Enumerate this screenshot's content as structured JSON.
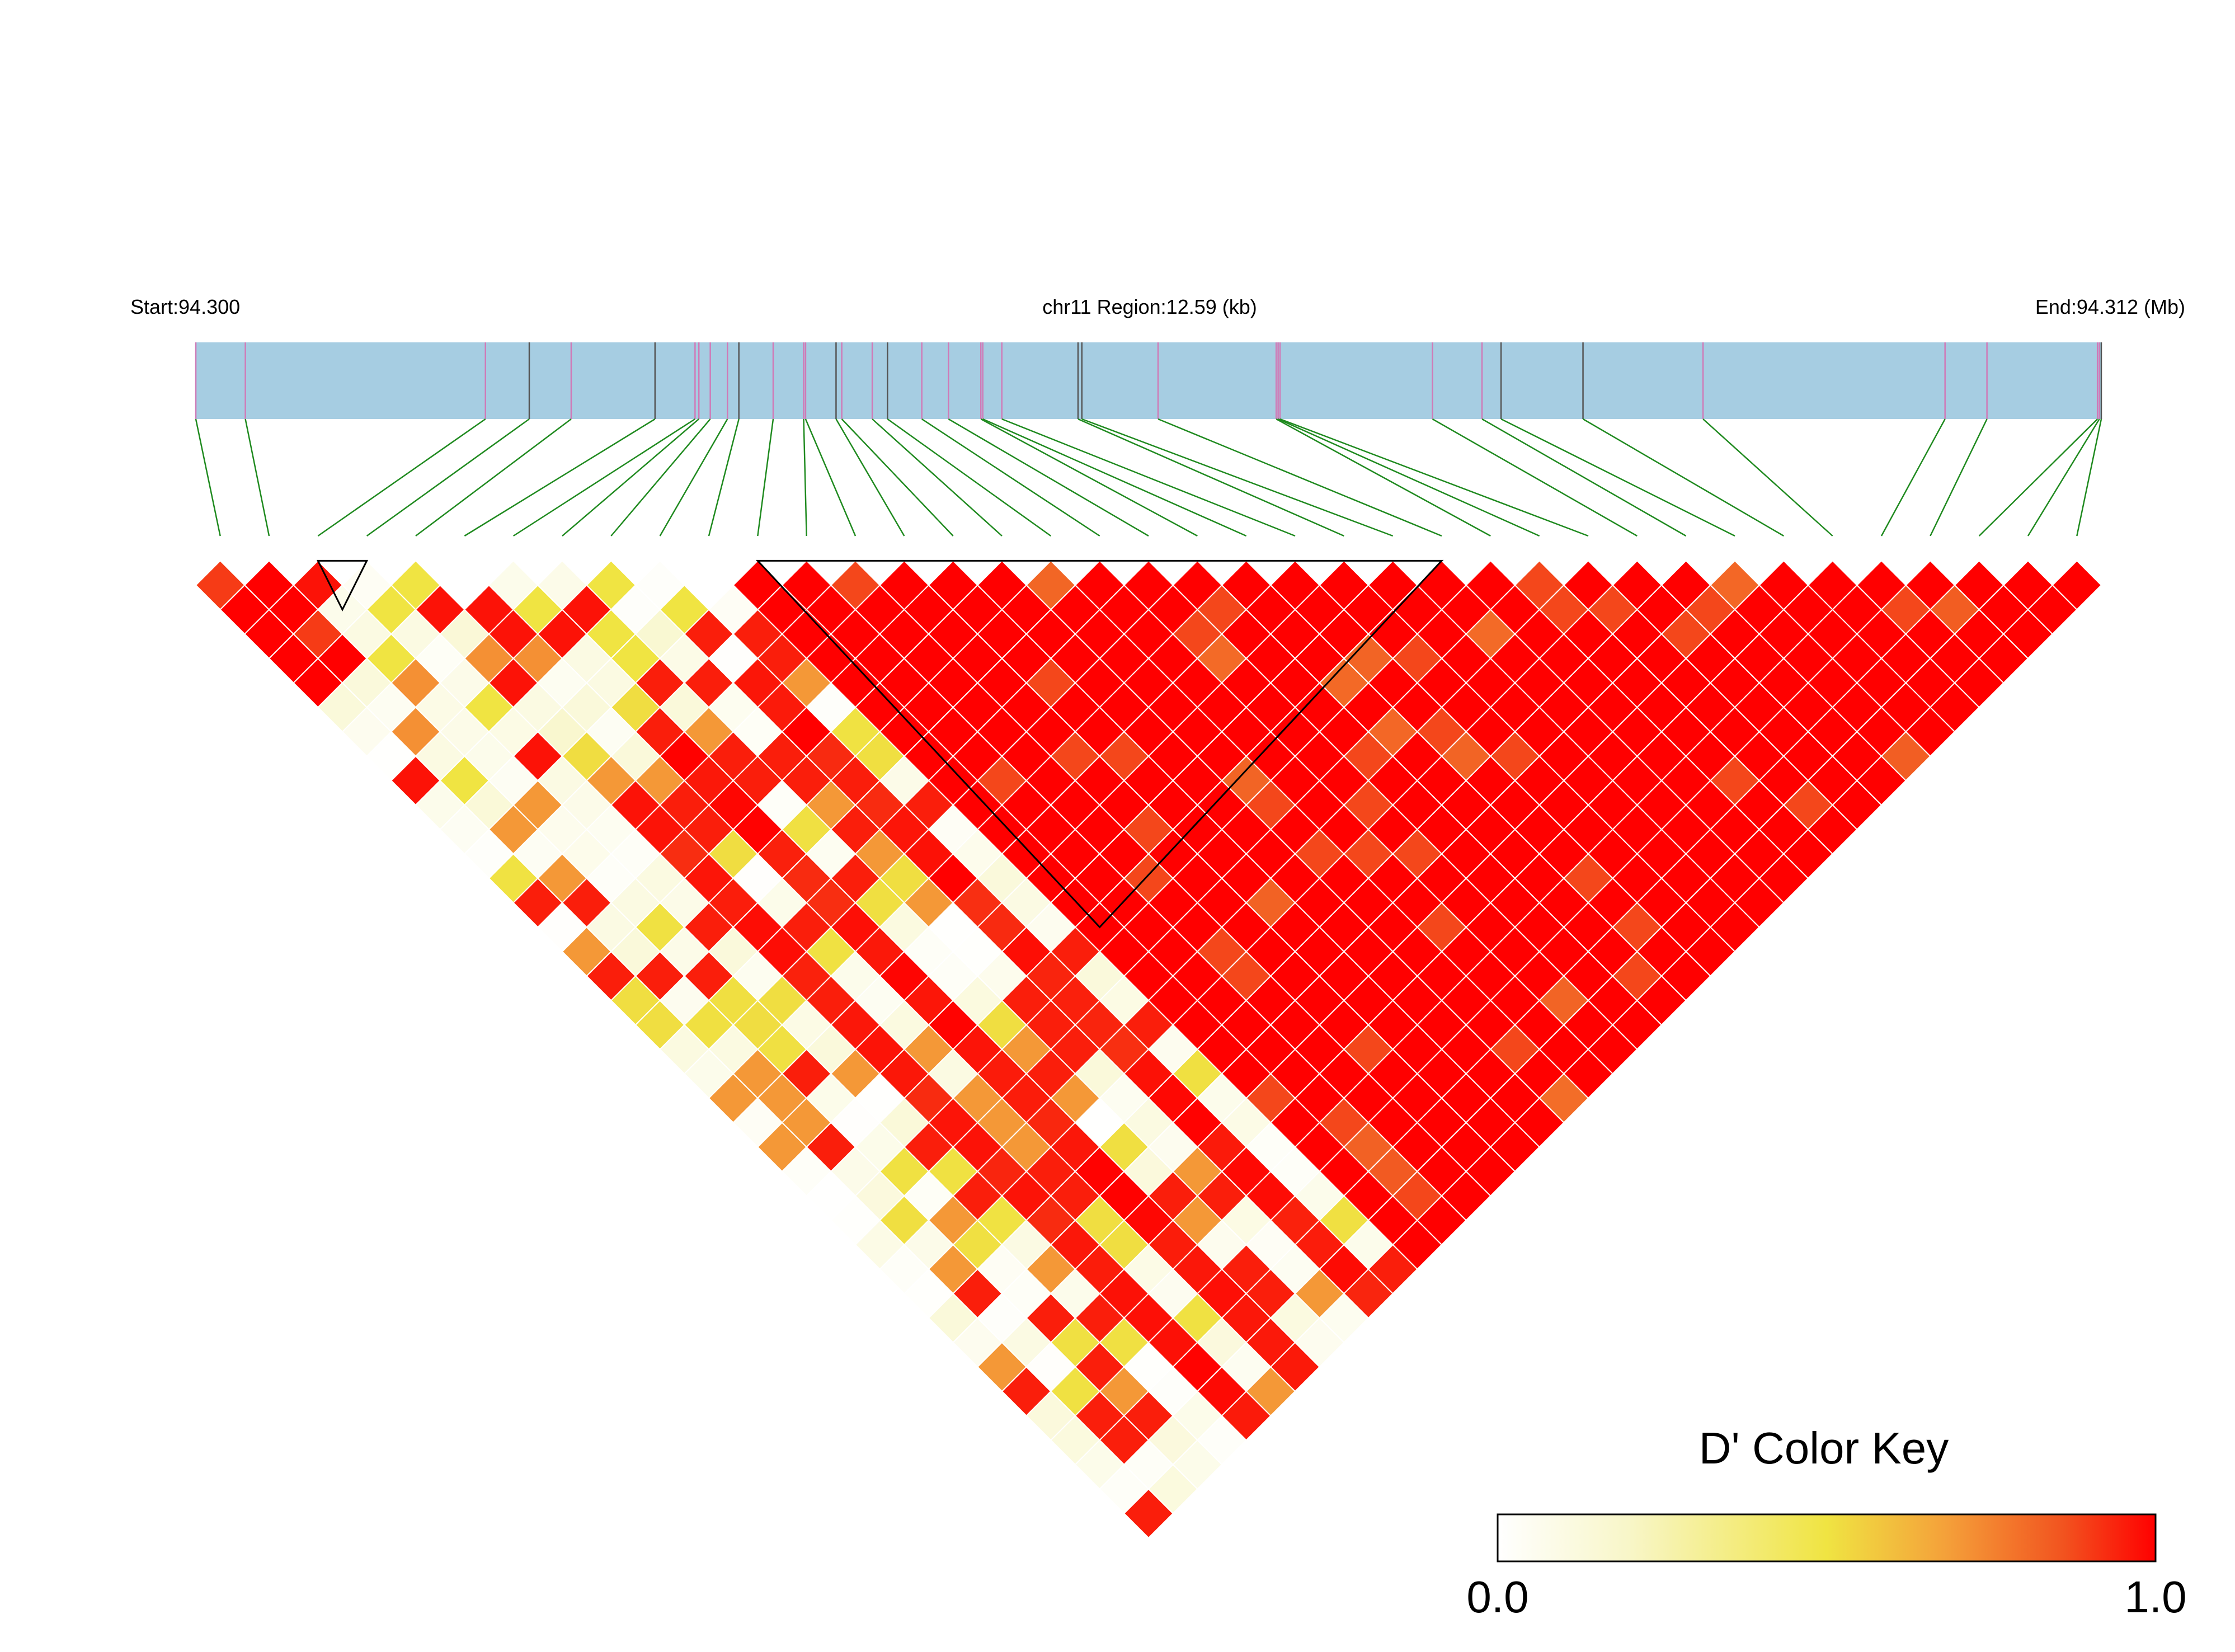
{
  "header": {
    "start_label": "Start:94.300",
    "region_label": "chr11 Region:12.59 (kb)",
    "end_label": "End:94.312 (Mb)"
  },
  "colors": {
    "track_fill": "#a6cde2",
    "snp_tick_typed": "#d07ab7",
    "snp_tick_other": "#555555",
    "connector": "#1f8a1f",
    "grid_line": "#ffffff",
    "block_outline": "#000000",
    "scale": [
      "#ffffff",
      "#f5f0a0",
      "#f0e040",
      "#f4a040",
      "#f04020",
      "#ff0000"
    ]
  },
  "snp_count": 39,
  "block_snps": [
    [
      2,
      3
    ],
    [
      11,
      25
    ]
  ],
  "legend": {
    "title": "D' Color Key",
    "min_label": "0.0",
    "max_label": "1.0"
  }
}
